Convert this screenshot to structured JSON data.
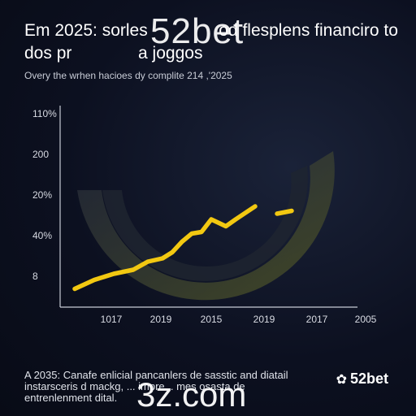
{
  "header": {
    "title": "Em 2025: sorles               od flesplens financiro to dos pr              a joggоs",
    "subtitle": "Overy the wrhen hacioes dy complite 214 ,'2025"
  },
  "watermarks": {
    "top": "52bet",
    "bottom": "3z.com"
  },
  "footer": {
    "note": "A 2035: Canafe enlicial pancanlers de sasstic and diatail instarsceris d mackg, ... impre... mes osasta de entrenlenment dital."
  },
  "brand": {
    "logo_text": "52bet",
    "icon": "leaf-logo-icon"
  },
  "colors": {
    "accent": "#f2c811",
    "arc": "#3c4220",
    "axis": "#c8ccd6"
  },
  "chart_data": {
    "type": "line",
    "title": "",
    "y_ticks": [
      "110%",
      "200",
      "20%",
      "40%",
      "8"
    ],
    "x_ticks": [
      "1017",
      "2019",
      "2015",
      "2019",
      "2017",
      "2005"
    ],
    "series": [
      {
        "values": [
          [
            0.2,
            0.09
          ],
          [
            0.6,
            0.31
          ],
          [
            1.0,
            0.46
          ],
          [
            1.4,
            0.56
          ],
          [
            1.7,
            0.76
          ],
          [
            2.0,
            0.84
          ],
          [
            2.2,
            0.99
          ],
          [
            2.4,
            1.25
          ],
          [
            2.6,
            1.45
          ],
          [
            2.8,
            1.49
          ],
          [
            3.0,
            1.8
          ],
          [
            3.3,
            1.63
          ],
          [
            3.5,
            1.8
          ],
          [
            3.9,
            2.12
          ]
        ]
      },
      {
        "values": [
          [
            4.35,
            1.94
          ],
          [
            4.65,
            2.01
          ]
        ]
      }
    ],
    "grid": false,
    "legend": "none"
  }
}
